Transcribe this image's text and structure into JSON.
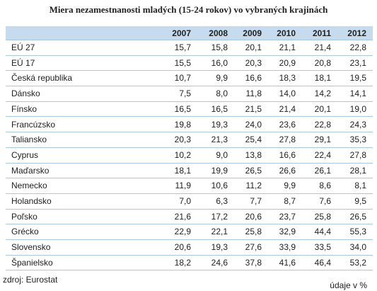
{
  "title": "Miera nezamestnanosti mladých (15-24 rokov) vo vybraných krajinách",
  "table": {
    "header": [
      "2007",
      "2008",
      "2009",
      "2010",
      "2011",
      "2012"
    ],
    "rows": [
      {
        "label": "EÚ 27",
        "cells": [
          "15,7",
          "15,8",
          "20,1",
          "21,1",
          "21,4",
          "22,8"
        ]
      },
      {
        "label": "EÚ 17",
        "cells": [
          "15,5",
          "16,0",
          "20,3",
          "20,9",
          "20,8",
          "23,1"
        ]
      },
      {
        "label": "Česká republika",
        "cells": [
          "10,7",
          "9,9",
          "16,6",
          "18,3",
          "18,1",
          "19,5"
        ]
      },
      {
        "label": "Dánsko",
        "cells": [
          "7,5",
          "8,0",
          "11,8",
          "14,0",
          "14,2",
          "14,1"
        ]
      },
      {
        "label": "Fínsko",
        "cells": [
          "16,5",
          "16,5",
          "21,5",
          "21,4",
          "20,1",
          "19,0"
        ]
      },
      {
        "label": "Francúzsko",
        "cells": [
          "19,8",
          "19,3",
          "24,0",
          "23,6",
          "22,8",
          "24,3"
        ]
      },
      {
        "label": "Taliansko",
        "cells": [
          "20,3",
          "21,3",
          "25,4",
          "27,8",
          "29,1",
          "35,3"
        ]
      },
      {
        "label": "Cyprus",
        "cells": [
          "10,2",
          "9,0",
          "13,8",
          "16,6",
          "22,4",
          "27,8"
        ]
      },
      {
        "label": "Maďarsko",
        "cells": [
          "18,1",
          "19,9",
          "26,5",
          "26,6",
          "26,1",
          "28,1"
        ]
      },
      {
        "label": "Nemecko",
        "cells": [
          "11,9",
          "10,6",
          "11,2",
          "9,9",
          "8,6",
          "8,1"
        ]
      },
      {
        "label": "Holandsko",
        "cells": [
          "7,0",
          "6,3",
          "7,7",
          "8,7",
          "7,6",
          "9,5"
        ]
      },
      {
        "label": "Poľsko",
        "cells": [
          "21,6",
          "17,2",
          "20,6",
          "23,7",
          "25,8",
          "26,5"
        ]
      },
      {
        "label": "Grécko",
        "cells": [
          "22,9",
          "22,1",
          "25,8",
          "32,9",
          "44,4",
          "55,3"
        ]
      },
      {
        "label": "Slovensko",
        "cells": [
          "20,6",
          "19,3",
          "27,6",
          "33,9",
          "33,5",
          "34,0"
        ]
      },
      {
        "label": "Španielsko",
        "cells": [
          "18,2",
          "24,6",
          "37,8",
          "41,6",
          "46,4",
          "53,2"
        ]
      }
    ]
  },
  "footer": {
    "source": "zdroj: Eurostat",
    "unit": "údaje v %"
  }
}
